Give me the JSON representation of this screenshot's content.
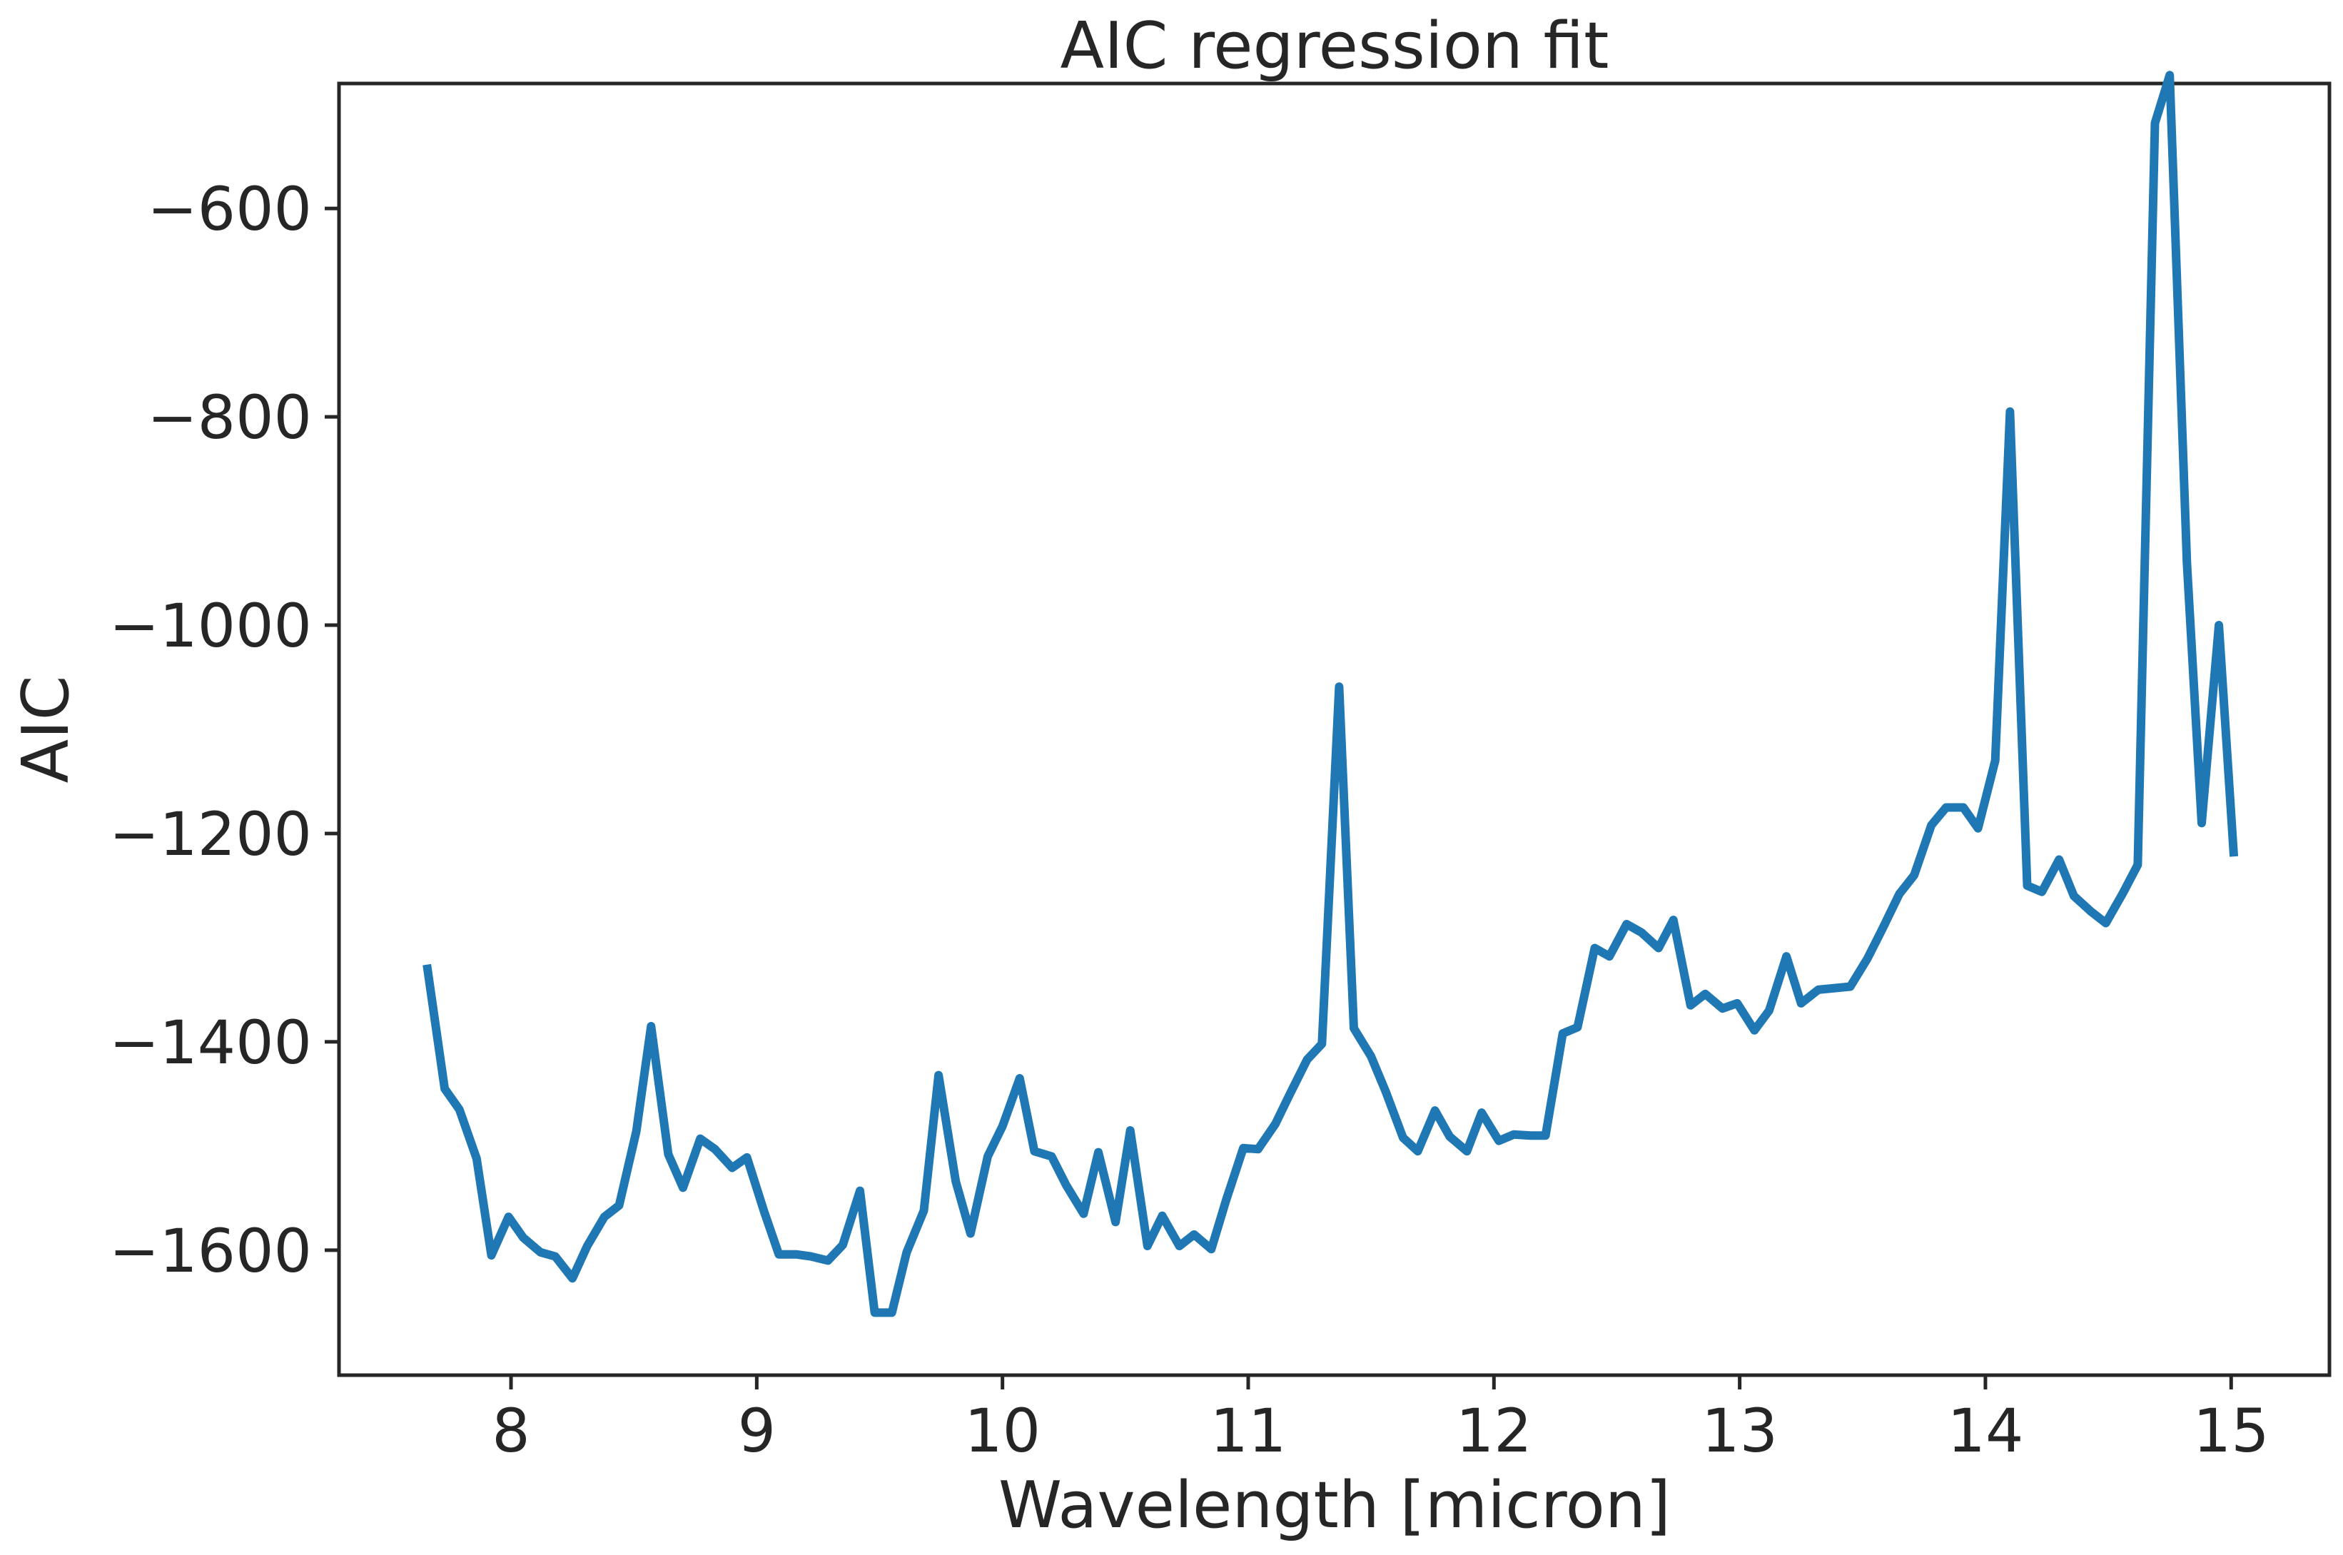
{
  "chart_data": {
    "type": "line",
    "title": "AIC regression fit",
    "xlabel": "Wavelength [micron]",
    "ylabel": "AIC",
    "xlim": [
      7.3,
      15.4
    ],
    "ylim": [
      -1720,
      -480
    ],
    "xticks": [
      8,
      9,
      10,
      11,
      12,
      13,
      14,
      15
    ],
    "yticks": [
      -600,
      -800,
      -1000,
      -1200,
      -1400,
      -1600
    ],
    "xtick_labels": [
      "8",
      "9",
      "10",
      "11",
      "12",
      "13",
      "14",
      "15"
    ],
    "ytick_labels": [
      "−600",
      "−800",
      "−1000",
      "−1200",
      "−1400",
      "−1600"
    ],
    "grid": false,
    "series": [
      {
        "color": "#1f77b4",
        "points": [
          [
            7.66,
            -1330
          ],
          [
            7.73,
            -1445
          ],
          [
            7.79,
            -1465
          ],
          [
            7.86,
            -1512
          ],
          [
            7.92,
            -1605
          ],
          [
            7.99,
            -1568
          ],
          [
            8.05,
            -1588
          ],
          [
            8.12,
            -1602
          ],
          [
            8.18,
            -1606
          ],
          [
            8.25,
            -1627
          ],
          [
            8.31,
            -1596
          ],
          [
            8.38,
            -1568
          ],
          [
            8.44,
            -1557
          ],
          [
            8.51,
            -1486
          ],
          [
            8.57,
            -1385
          ],
          [
            8.64,
            -1508
          ],
          [
            8.7,
            -1540
          ],
          [
            8.77,
            -1493
          ],
          [
            8.83,
            -1503
          ],
          [
            8.9,
            -1521
          ],
          [
            8.96,
            -1511
          ],
          [
            9.03,
            -1563
          ],
          [
            9.09,
            -1604
          ],
          [
            9.16,
            -1604
          ],
          [
            9.22,
            -1606
          ],
          [
            9.29,
            -1610
          ],
          [
            9.35,
            -1595
          ],
          [
            9.42,
            -1543
          ],
          [
            9.48,
            -1660
          ],
          [
            9.55,
            -1660
          ],
          [
            9.61,
            -1602
          ],
          [
            9.68,
            -1562
          ],
          [
            9.74,
            -1432
          ],
          [
            9.81,
            -1534
          ],
          [
            9.87,
            -1584
          ],
          [
            9.94,
            -1510
          ],
          [
            10.0,
            -1481
          ],
          [
            10.07,
            -1435
          ],
          [
            10.13,
            -1505
          ],
          [
            10.2,
            -1510
          ],
          [
            10.26,
            -1538
          ],
          [
            10.33,
            -1565
          ],
          [
            10.39,
            -1506
          ],
          [
            10.46,
            -1573
          ],
          [
            10.52,
            -1485
          ],
          [
            10.59,
            -1596
          ],
          [
            10.65,
            -1567
          ],
          [
            10.72,
            -1596
          ],
          [
            10.78,
            -1585
          ],
          [
            10.85,
            -1599
          ],
          [
            10.91,
            -1552
          ],
          [
            10.98,
            -1502
          ],
          [
            11.04,
            -1503
          ],
          [
            11.11,
            -1479
          ],
          [
            11.17,
            -1450
          ],
          [
            11.24,
            -1417
          ],
          [
            11.3,
            -1402
          ],
          [
            11.37,
            -1059
          ],
          [
            11.43,
            -1387
          ],
          [
            11.5,
            -1414
          ],
          [
            11.56,
            -1448
          ],
          [
            11.63,
            -1492
          ],
          [
            11.69,
            -1505
          ],
          [
            11.76,
            -1466
          ],
          [
            11.82,
            -1491
          ],
          [
            11.89,
            -1505
          ],
          [
            11.95,
            -1468
          ],
          [
            12.02,
            -1495
          ],
          [
            12.08,
            -1489
          ],
          [
            12.15,
            -1490
          ],
          [
            12.21,
            -1490
          ],
          [
            12.28,
            -1392
          ],
          [
            12.34,
            -1386
          ],
          [
            12.41,
            -1310
          ],
          [
            12.47,
            -1318
          ],
          [
            12.54,
            -1287
          ],
          [
            12.6,
            -1295
          ],
          [
            12.67,
            -1310
          ],
          [
            12.73,
            -1283
          ],
          [
            12.8,
            -1365
          ],
          [
            12.86,
            -1354
          ],
          [
            12.93,
            -1368
          ],
          [
            12.99,
            -1363
          ],
          [
            13.06,
            -1389
          ],
          [
            13.12,
            -1370
          ],
          [
            13.19,
            -1318
          ],
          [
            13.25,
            -1363
          ],
          [
            13.32,
            -1350
          ],
          [
            13.45,
            -1347
          ],
          [
            13.52,
            -1320
          ],
          [
            13.58,
            -1292
          ],
          [
            13.65,
            -1258
          ],
          [
            13.71,
            -1240
          ],
          [
            13.78,
            -1192
          ],
          [
            13.84,
            -1175
          ],
          [
            13.91,
            -1175
          ],
          [
            13.97,
            -1195
          ],
          [
            14.04,
            -1130
          ],
          [
            14.1,
            -795
          ],
          [
            14.17,
            -1250
          ],
          [
            14.23,
            -1256
          ],
          [
            14.3,
            -1225
          ],
          [
            14.36,
            -1260
          ],
          [
            14.43,
            -1275
          ],
          [
            14.49,
            -1286
          ],
          [
            14.56,
            -1257
          ],
          [
            14.62,
            -1230
          ],
          [
            14.69,
            -518
          ],
          [
            14.75,
            -472
          ],
          [
            14.82,
            -940
          ],
          [
            14.88,
            -1190
          ],
          [
            14.95,
            -1000
          ],
          [
            15.01,
            -1218
          ]
        ]
      }
    ]
  }
}
